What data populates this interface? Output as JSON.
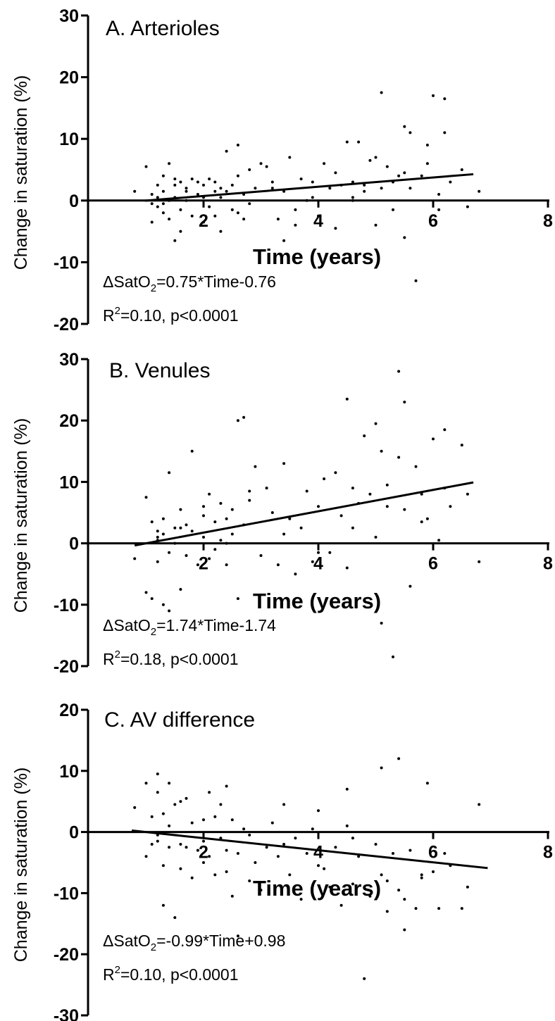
{
  "chart_data": [
    {
      "type": "scatter",
      "title": "A. Arterioles",
      "xlabel": "Time (years)",
      "ylabel": "Change in saturation (%)",
      "xlim": [
        0,
        8
      ],
      "ylim": [
        -20,
        30
      ],
      "xticks": [
        2,
        4,
        6,
        8
      ],
      "yticks": [
        -20,
        -10,
        0,
        10,
        20,
        30
      ],
      "grid": false,
      "fit": {
        "slope": 0.75,
        "intercept": -0.76,
        "x_range": [
          0.98,
          6.7
        ]
      },
      "equation": {
        "prefix": "ΔSatO",
        "sub": "2",
        "rest": "=0.75*Time-0.76"
      },
      "stats": {
        "prefix": "R",
        "sup": "2",
        "rest": "=0.10, p<0.0001"
      },
      "points": {
        "x": [
          0.8,
          1.0,
          1.1,
          1.1,
          1.2,
          1.2,
          1.2,
          1.3,
          1.3,
          1.3,
          1.4,
          1.4,
          1.4,
          1.5,
          1.5,
          1.5,
          1.6,
          1.6,
          1.6,
          1.7,
          1.7,
          1.8,
          1.8,
          1.9,
          1.9,
          2.0,
          2.0,
          2.0,
          2.1,
          2.1,
          2.2,
          2.2,
          2.3,
          2.3,
          2.3,
          2.4,
          2.4,
          2.5,
          2.5,
          2.6,
          2.6,
          2.6,
          2.7,
          2.7,
          2.8,
          2.9,
          3.0,
          3.1,
          3.2,
          3.3,
          3.4,
          3.4,
          3.5,
          3.6,
          3.7,
          3.8,
          3.9,
          4.0,
          4.1,
          4.2,
          4.3,
          4.3,
          4.4,
          4.5,
          4.6,
          4.6,
          4.7,
          4.8,
          4.9,
          5.0,
          5.0,
          5.1,
          5.1,
          5.2,
          5.3,
          5.4,
          5.5,
          5.5,
          5.6,
          5.6,
          5.7,
          5.8,
          5.9,
          5.9,
          6.0,
          6.1,
          6.2,
          6.2,
          6.3,
          6.5,
          6.6,
          6.8,
          1.3,
          1.5,
          2.2,
          2.8,
          3.6,
          4.6,
          5.5,
          1.1,
          1.7,
          3.2,
          3.9,
          4.8,
          5.3,
          6.1
        ],
        "y": [
          1.5,
          5.5,
          1.0,
          -3.5,
          2.5,
          -1.0,
          0.5,
          4.0,
          -2.0,
          1.5,
          6.0,
          0.0,
          -3.0,
          -6.5,
          2.5,
          0.5,
          3.0,
          -1.5,
          -5.0,
          2.0,
          0.0,
          3.5,
          -2.5,
          1.0,
          3.0,
          -3.5,
          0.5,
          2.5,
          -1.0,
          3.5,
          1.5,
          -2.5,
          0.5,
          2.0,
          -5.0,
          8.0,
          1.5,
          2.5,
          -1.5,
          4.0,
          -2.0,
          9.0,
          1.0,
          -3.0,
          5.0,
          2.0,
          6.0,
          5.5,
          3.0,
          -3.0,
          -6.5,
          1.5,
          7.0,
          -4.0,
          3.5,
          0.0,
          3.0,
          -2.5,
          6.0,
          2.0,
          -4.5,
          4.5,
          2.5,
          9.5,
          0.0,
          3.0,
          9.5,
          2.5,
          6.5,
          7.0,
          -4.0,
          17.5,
          2.0,
          5.5,
          -1.5,
          4.0,
          12.0,
          -6.0,
          11.0,
          2.0,
          -13.0,
          4.0,
          9.0,
          6.0,
          17.0,
          1.0,
          16.5,
          11.0,
          3.0,
          5.0,
          -1.0,
          1.5,
          -0.5,
          3.5,
          3.0,
          -0.5,
          -1.5,
          0.5,
          4.5,
          -0.5,
          1.5,
          2.0,
          0.5,
          1.5,
          3.0,
          -1.5
        ]
      }
    },
    {
      "type": "scatter",
      "title": "B. Venules",
      "xlabel": "Time (years)",
      "ylabel": "Change in saturation (%)",
      "xlim": [
        0,
        8
      ],
      "ylim": [
        -20,
        30
      ],
      "xticks": [
        2,
        4,
        6,
        8
      ],
      "yticks": [
        -20,
        -10,
        0,
        10,
        20,
        30
      ],
      "grid": false,
      "fit": {
        "slope": 1.74,
        "intercept": -1.74,
        "x_range": [
          0.8,
          6.7
        ]
      },
      "equation": {
        "prefix": "ΔSatO",
        "sub": "2",
        "rest": "=1.74*Time-1.74"
      },
      "stats": {
        "prefix": "R",
        "sup": "2",
        "rest": "=0.18, p<0.0001"
      },
      "points": {
        "x": [
          0.8,
          1.0,
          1.0,
          1.1,
          1.1,
          1.2,
          1.2,
          1.2,
          1.3,
          1.3,
          1.3,
          1.4,
          1.4,
          1.5,
          1.5,
          1.6,
          1.6,
          1.7,
          1.7,
          1.8,
          1.8,
          1.9,
          2.0,
          2.0,
          2.1,
          2.1,
          2.2,
          2.2,
          2.3,
          2.3,
          2.4,
          2.4,
          2.5,
          2.5,
          2.6,
          2.6,
          2.7,
          2.7,
          2.8,
          2.9,
          3.0,
          3.1,
          3.2,
          3.3,
          3.4,
          3.5,
          3.6,
          3.7,
          3.8,
          3.9,
          4.0,
          4.1,
          4.2,
          4.3,
          4.4,
          4.5,
          4.5,
          4.6,
          4.7,
          4.8,
          4.9,
          5.0,
          5.0,
          5.1,
          5.1,
          5.2,
          5.3,
          5.4,
          5.4,
          5.5,
          5.5,
          5.6,
          5.7,
          5.8,
          5.9,
          6.0,
          6.1,
          6.2,
          6.2,
          6.3,
          6.5,
          6.6,
          6.8,
          1.2,
          1.4,
          1.6,
          2.0,
          2.4,
          2.8,
          3.4,
          4.0,
          4.6,
          5.2,
          5.8
        ],
        "y": [
          -2.5,
          7.5,
          -8.0,
          3.5,
          -9.0,
          2.0,
          -3.0,
          0.5,
          4.0,
          -10.0,
          1.5,
          11.5,
          -11.0,
          2.5,
          0.0,
          5.5,
          -7.5,
          3.0,
          -2.0,
          15.0,
          2.0,
          -3.5,
          6.0,
          1.0,
          8.0,
          -2.5,
          3.5,
          -1.0,
          6.5,
          0.5,
          4.0,
          -3.5,
          5.5,
          1.5,
          20.0,
          -9.0,
          20.5,
          3.0,
          8.5,
          12.5,
          -2.0,
          9.0,
          5.0,
          -3.5,
          13.0,
          4.0,
          -5.0,
          2.5,
          8.5,
          -3.0,
          6.0,
          10.5,
          -1.5,
          11.5,
          4.5,
          23.5,
          -4.0,
          9.0,
          6.5,
          17.5,
          8.0,
          19.5,
          1.0,
          -13.0,
          15.0,
          9.5,
          -18.5,
          28.0,
          14.0,
          23.0,
          5.5,
          -7.0,
          12.5,
          8.0,
          4.0,
          17.0,
          0.5,
          18.5,
          9.0,
          6.0,
          16.0,
          8.0,
          -3.0,
          1.0,
          -1.5,
          2.5,
          4.5,
          0.0,
          7.0,
          1.5,
          -1.5,
          2.5,
          6.0,
          3.5
        ]
      }
    },
    {
      "type": "scatter",
      "title": "C. AV difference",
      "xlabel": "Time (years)",
      "ylabel": "Change in saturation (%)",
      "xlim": [
        0,
        8
      ],
      "ylim": [
        -30,
        20
      ],
      "xticks": [
        2,
        4,
        6,
        8
      ],
      "yticks": [
        -30,
        -20,
        -10,
        0,
        10,
        20
      ],
      "grid": false,
      "fit": {
        "slope": -0.99,
        "intercept": 0.98,
        "x_range": [
          0.75,
          6.95
        ]
      },
      "equation": {
        "prefix": "ΔSatO",
        "sub": "2",
        "rest": "=-0.99*Time+0.98"
      },
      "stats": {
        "prefix": "R",
        "sup": "2",
        "rest": "=0.10, p<0.0001"
      },
      "points": {
        "x": [
          0.8,
          1.0,
          1.0,
          1.1,
          1.1,
          1.2,
          1.2,
          1.2,
          1.3,
          1.3,
          1.3,
          1.4,
          1.4,
          1.5,
          1.5,
          1.6,
          1.6,
          1.7,
          1.7,
          1.8,
          1.8,
          1.9,
          2.0,
          2.0,
          2.1,
          2.1,
          2.2,
          2.2,
          2.3,
          2.3,
          2.4,
          2.4,
          2.5,
          2.5,
          2.6,
          2.6,
          2.7,
          2.8,
          2.9,
          3.0,
          3.1,
          3.2,
          3.3,
          3.4,
          3.5,
          3.6,
          3.7,
          3.8,
          3.9,
          4.0,
          4.1,
          4.2,
          4.3,
          4.4,
          4.5,
          4.5,
          4.6,
          4.7,
          4.8,
          4.9,
          5.0,
          5.1,
          5.1,
          5.2,
          5.3,
          5.4,
          5.4,
          5.5,
          5.5,
          5.6,
          5.7,
          5.8,
          5.9,
          6.0,
          6.1,
          6.2,
          6.3,
          6.5,
          6.6,
          6.8,
          1.2,
          1.4,
          1.6,
          2.0,
          2.4,
          2.8,
          3.4,
          4.0,
          4.6,
          5.2,
          5.8
        ],
        "y": [
          4.0,
          -4.0,
          8.0,
          2.5,
          -2.0,
          9.5,
          -1.5,
          6.5,
          3.0,
          -5.5,
          -12.0,
          8.0,
          -2.5,
          4.5,
          -14.0,
          5.0,
          -6.0,
          -2.5,
          5.5,
          1.5,
          -7.5,
          -3.0,
          2.0,
          -5.0,
          6.5,
          -4.0,
          2.5,
          -7.0,
          4.5,
          -1.0,
          7.5,
          -6.5,
          -10.5,
          2.0,
          -17.0,
          -3.5,
          0.5,
          -8.0,
          -5.0,
          -9.5,
          -2.5,
          1.5,
          -4.0,
          4.5,
          -7.0,
          -1.0,
          -11.0,
          -3.5,
          0.5,
          3.5,
          -6.0,
          -9.0,
          -2.5,
          -12.0,
          7.0,
          1.0,
          -8.5,
          -4.0,
          -24.0,
          -10.5,
          -2.0,
          10.5,
          -7.0,
          -13.0,
          -3.5,
          12.0,
          -9.5,
          -16.0,
          -11.0,
          -3.0,
          -12.5,
          -7.5,
          8.0,
          -6.5,
          -12.5,
          -3.5,
          -5.5,
          -12.5,
          -9.0,
          4.5,
          -0.5,
          1.0,
          -2.0,
          -1.5,
          -3.0,
          -0.5,
          -2.0,
          -5.5,
          -1.0,
          -8.0,
          -7.0
        ]
      }
    }
  ]
}
